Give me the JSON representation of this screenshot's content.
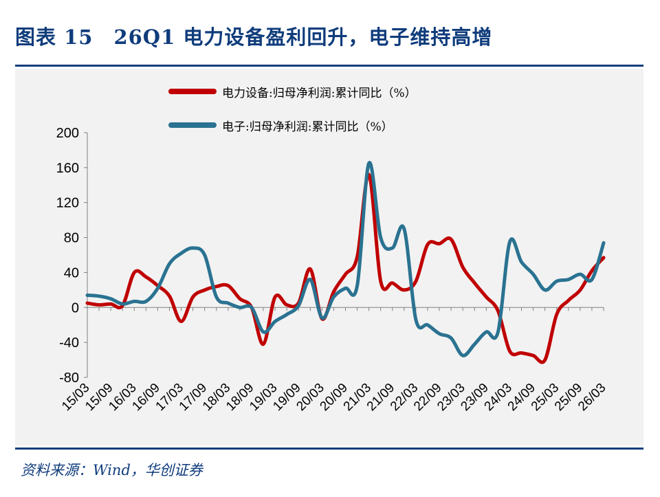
{
  "figure": {
    "title": "图表 15　26Q1 电力设备盈利回升，电子维持高增",
    "source": "资料来源：Wind，华创证券"
  },
  "colors": {
    "title": "#0F3C7C",
    "rule": "#0F3C7C",
    "background": "#F2F2F2"
  },
  "chart_data": {
    "type": "line",
    "title": "",
    "xlabel": "",
    "ylabel": "",
    "ylim": [
      -80,
      200
    ],
    "yticks": [
      -80,
      -40,
      0,
      40,
      80,
      120,
      160,
      200
    ],
    "grid": false,
    "legend_position": "top",
    "x_tick_labels": [
      "15/03",
      "15/09",
      "16/03",
      "16/09",
      "17/03",
      "17/09",
      "18/03",
      "18/09",
      "19/03",
      "19/09",
      "20/03",
      "20/09",
      "21/03",
      "21/09",
      "22/03",
      "22/09",
      "23/03",
      "23/09",
      "24/03",
      "24/09",
      "25/03",
      "25/09",
      "26/03"
    ],
    "x": [
      "15/03",
      "15/06",
      "15/09",
      "15/12",
      "16/03",
      "16/06",
      "16/09",
      "16/12",
      "17/03",
      "17/06",
      "17/09",
      "17/12",
      "18/03",
      "18/06",
      "18/09",
      "18/12",
      "19/03",
      "19/06",
      "19/09",
      "19/12",
      "20/03",
      "20/06",
      "20/09",
      "20/12",
      "21/03",
      "21/06",
      "21/09",
      "21/12",
      "22/03",
      "22/06",
      "22/09",
      "22/12",
      "23/03",
      "23/06",
      "23/09",
      "23/12",
      "24/03",
      "24/06",
      "24/09",
      "24/12",
      "25/03",
      "25/06",
      "25/09",
      "25/12",
      "26/03"
    ],
    "series": [
      {
        "name": "电力设备:归母净利润:累计同比（%）",
        "color": "#C00000",
        "values": [
          5,
          3,
          4,
          2,
          40,
          35,
          25,
          13,
          -16,
          12,
          20,
          24,
          25,
          10,
          0,
          -42,
          12,
          3,
          5,
          44,
          -13,
          18,
          38,
          58,
          152,
          30,
          28,
          20,
          30,
          72,
          73,
          78,
          46,
          28,
          12,
          -4,
          -50,
          -52,
          -55,
          -60,
          -8,
          8,
          20,
          42,
          57
        ]
      },
      {
        "name": "电子:归母净利润:累计同比（%）",
        "color": "#2A7291",
        "values": [
          14,
          13,
          10,
          4,
          7,
          7,
          22,
          50,
          62,
          68,
          60,
          12,
          5,
          0,
          0,
          -28,
          -16,
          -8,
          2,
          32,
          -12,
          12,
          22,
          25,
          165,
          80,
          68,
          90,
          -14,
          -20,
          -30,
          -35,
          -55,
          -42,
          -28,
          -28,
          75,
          52,
          38,
          20,
          30,
          32,
          38,
          32,
          74
        ]
      }
    ]
  }
}
